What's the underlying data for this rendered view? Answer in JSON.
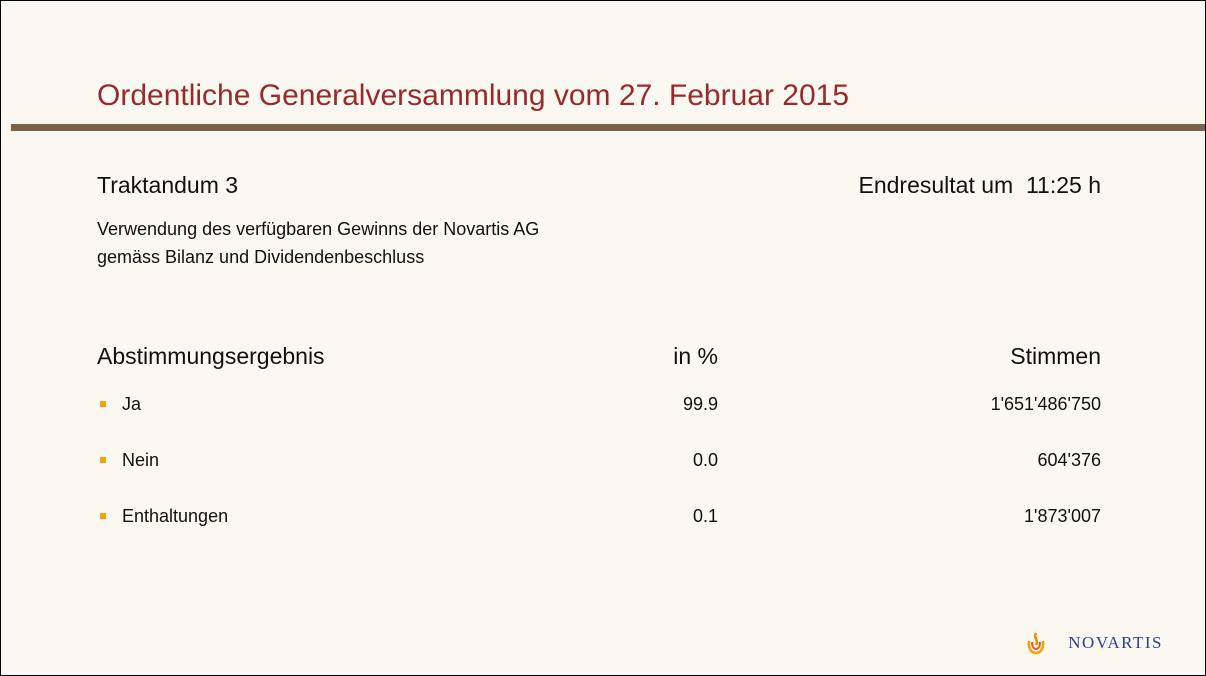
{
  "header": {
    "title": "Ordentliche Generalversammlung vom 27. Februar 2015"
  },
  "agenda": {
    "item": "Traktandum 3",
    "result_time": "Endresultat um  11:25 h",
    "description": [
      "Verwendung des verfügbaren Gewinns der Novartis AG",
      "gemäss Bilanz und Dividendenbeschluss"
    ]
  },
  "table": {
    "columns": [
      "Abstimmungsergebnis",
      "in %",
      "Stimmen"
    ],
    "rows": [
      [
        "Ja",
        "99.9",
        "1'651'486'750"
      ],
      [
        "Nein",
        "0.0",
        "604'376"
      ],
      [
        "Enthaltungen",
        "0.1",
        "1'873'007"
      ]
    ]
  },
  "logo": "NOVARTIS"
}
